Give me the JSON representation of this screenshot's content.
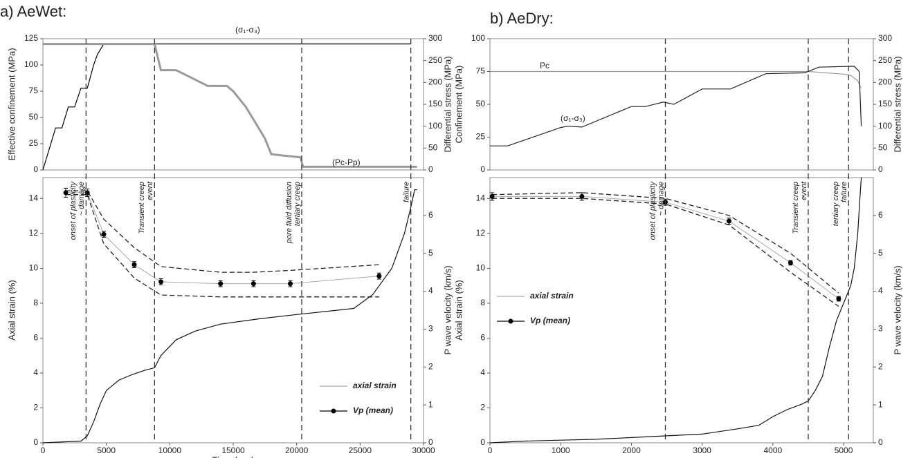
{
  "chart_data": [
    {
      "type": "line",
      "title": "a) AeWet:",
      "ylabel": "Effective confinement  (MPa)",
      "y2label": "Differential stress (MPa)",
      "xlim": [
        0,
        30000
      ],
      "ylim": [
        0,
        125
      ],
      "yticks": [
        0,
        25,
        50,
        75,
        100,
        125
      ],
      "y2lim": [
        0,
        300
      ],
      "y2ticks": [
        0,
        50,
        100,
        150,
        200,
        250,
        300
      ],
      "series": [
        {
          "name": "(σ₁-σ₃)",
          "color": "#000000",
          "axis": "y2",
          "x": [
            0,
            500,
            1000,
            1500,
            2000,
            2500,
            3000,
            3500,
            4000,
            4300,
            4800,
            29000
          ],
          "values": [
            0,
            48,
            96,
            96,
            144,
            144,
            187,
            187,
            240,
            264,
            288,
            288
          ]
        },
        {
          "name": "(Pc-Pp)",
          "color": "#999999",
          "x": [
            0,
            8800,
            9300,
            10500,
            13000,
            14500,
            15000,
            16000,
            16500,
            17000,
            17500,
            18000,
            20300,
            20500,
            29500
          ],
          "values": [
            120,
            120,
            95,
            95,
            80,
            80,
            75,
            60,
            50,
            40,
            30,
            15,
            12,
            3,
            3
          ]
        }
      ]
    },
    {
      "type": "line",
      "xlabel": "Time (sec)",
      "ylabel": "Axial strain (%)",
      "y2label": "P wave velocity (km/s)",
      "xlim": [
        0,
        30000
      ],
      "xticks": [
        0,
        5000,
        10000,
        15000,
        20000,
        25000,
        30000
      ],
      "ylim": [
        0,
        15.2
      ],
      "yticks": [
        0,
        2,
        4,
        6,
        8,
        10,
        12,
        14
      ],
      "y2lim": [
        0,
        7
      ],
      "y2ticks": [
        0,
        1,
        2,
        3,
        4,
        5,
        6
      ],
      "legend": "lower right",
      "series": [
        {
          "name": "axial strain",
          "color": "#111111",
          "x": [
            0,
            3000,
            3500,
            4000,
            4500,
            5000,
            6000,
            7000,
            8000,
            8800,
            9300,
            10500,
            12000,
            14000,
            17000,
            20000,
            24500,
            26000,
            27500,
            28500,
            29000,
            29300,
            29500
          ],
          "values": [
            0,
            0.1,
            0.4,
            1.2,
            2.2,
            3.0,
            3.6,
            3.9,
            4.15,
            4.3,
            5.0,
            5.9,
            6.4,
            6.8,
            7.1,
            7.35,
            7.7,
            8.5,
            10,
            12,
            13.5,
            14.5,
            14.5
          ]
        },
        {
          "name": "Vp (mean)",
          "color": "#000000",
          "axis": "y2",
          "x": [
            1800,
            3500,
            4800,
            7200,
            9300,
            14000,
            16600,
            19500,
            26500
          ],
          "values": [
            6.6,
            6.6,
            5.5,
            4.7,
            4.25,
            4.2,
            4.2,
            4.2,
            4.4
          ],
          "errors": [
            0.12,
            0.1,
            0.08,
            0.08,
            0.08,
            0.08,
            0.08,
            0.08,
            0.08
          ],
          "upper": [
            6.65,
            6.65,
            5.9,
            5.15,
            4.65,
            4.5,
            4.5,
            4.55,
            4.7
          ],
          "lower": [
            6.55,
            6.55,
            5.25,
            4.35,
            3.9,
            3.85,
            3.85,
            3.85,
            3.85
          ]
        }
      ],
      "events": [
        {
          "x": 3400,
          "label": [
            "onset of plasticity",
            "~ damage"
          ]
        },
        {
          "x": 8800,
          "label": [
            "Transient creep",
            "event"
          ]
        },
        {
          "x": 20400,
          "label": [
            "pore fluid diffusion",
            "tertiary creep"
          ]
        },
        {
          "x": 29000,
          "label": [
            "failure"
          ]
        }
      ]
    },
    {
      "type": "line",
      "title": "b) AeDry:",
      "ylabel": "Confinement (MPa)",
      "y2label": "Differential stress (MPa)",
      "xlim": [
        0,
        5420
      ],
      "ylim": [
        0,
        100
      ],
      "yticks": [
        0,
        25,
        50,
        75,
        100
      ],
      "y2lim": [
        0,
        300
      ],
      "y2ticks": [
        0,
        50,
        100,
        150,
        200,
        250,
        300
      ],
      "series": [
        {
          "name": "Pc",
          "color": "#999999",
          "x": [
            0,
            4500,
            5000,
            5100,
            5200,
            5250
          ],
          "values": [
            75,
            75,
            73,
            72,
            68,
            62
          ]
        },
        {
          "name": "(σ₁-σ₃)",
          "color": "#222222",
          "axis": "y2",
          "x": [
            0,
            250,
            1000,
            1100,
            1300,
            2000,
            2200,
            2450,
            2600,
            3000,
            3400,
            3900,
            4450,
            4650,
            5150,
            5220,
            5250
          ],
          "values": [
            55,
            55,
            97,
            100,
            98,
            145,
            145,
            155,
            150,
            185,
            185,
            220,
            222,
            235,
            237,
            225,
            100
          ]
        }
      ]
    },
    {
      "type": "line",
      "ylabel": "Axial strain (%)",
      "y2label": "P wave velocity (km/s)",
      "xlim": [
        0,
        5420
      ],
      "xticks": [
        0,
        1000,
        2000,
        3000,
        4000,
        5000
      ],
      "ylim": [
        0,
        15.2
      ],
      "yticks": [
        0,
        2,
        4,
        6,
        8,
        10,
        12,
        14
      ],
      "y2lim": [
        0,
        7
      ],
      "y2ticks": [
        0,
        1,
        2,
        3,
        4,
        5,
        6
      ],
      "legend": "center left",
      "series": [
        {
          "name": "axial strain",
          "color": "#111111",
          "x": [
            0,
            500,
            1000,
            1500,
            2000,
            2500,
            3000,
            3500,
            3800,
            4000,
            4200,
            4400,
            4500,
            4600,
            4700,
            4800,
            4900,
            5000,
            5100,
            5150,
            5200,
            5230,
            5250
          ],
          "values": [
            0,
            0.1,
            0.15,
            0.2,
            0.3,
            0.4,
            0.5,
            0.8,
            1.0,
            1.5,
            1.9,
            2.2,
            2.4,
            3.0,
            3.8,
            5.5,
            7.0,
            8.0,
            9.0,
            10,
            12,
            14,
            15.2
          ]
        },
        {
          "name": "Vp (mean)",
          "color": "#000000",
          "axis": "y2",
          "x": [
            30,
            1300,
            2480,
            3380,
            4250,
            4930
          ],
          "values": [
            6.5,
            6.5,
            6.35,
            5.85,
            4.75,
            3.8
          ],
          "errors": [
            0.1,
            0.1,
            0.08,
            0.08,
            0.06,
            0.06
          ],
          "upper": [
            6.55,
            6.6,
            6.45,
            6.0,
            5.0,
            3.95
          ],
          "lower": [
            6.45,
            6.45,
            6.3,
            5.75,
            4.5,
            3.6
          ]
        }
      ],
      "events": [
        {
          "x": 2480,
          "label": [
            "onset of plasticity",
            "~ damage"
          ]
        },
        {
          "x": 4500,
          "label": [
            "Transient creep",
            "event"
          ]
        },
        {
          "x": 5070,
          "label": [
            "tertiary creep",
            "failure"
          ]
        }
      ]
    }
  ]
}
